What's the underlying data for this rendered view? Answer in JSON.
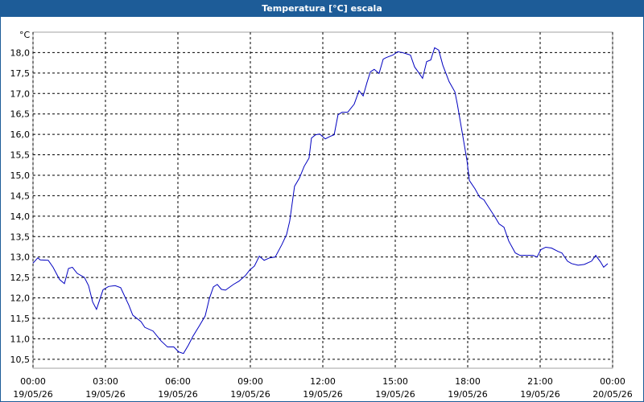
{
  "chart_data": {
    "type": "line",
    "title": "Temperatura [°C] escala",
    "y_unit": "°C",
    "x": [
      0,
      0.2,
      0.3,
      0.63,
      0.83,
      1.1,
      1.3,
      1.47,
      1.63,
      1.83,
      2.13,
      2.3,
      2.47,
      2.63,
      2.9,
      3.13,
      3.4,
      3.63,
      3.97,
      4.13,
      4.47,
      4.63,
      4.97,
      5.3,
      5.57,
      5.83,
      6.03,
      6.23,
      6.43,
      6.63,
      6.9,
      7.13,
      7.3,
      7.47,
      7.63,
      7.8,
      7.97,
      8.3,
      8.53,
      8.8,
      8.97,
      9.17,
      9.37,
      9.57,
      9.8,
      10.03,
      10.3,
      10.5,
      10.63,
      10.83,
      11.03,
      11.23,
      11.43,
      11.53,
      11.7,
      11.87,
      12.1,
      12.3,
      12.47,
      12.63,
      12.8,
      13.03,
      13.3,
      13.5,
      13.67,
      13.83,
      13.97,
      14.13,
      14.33,
      14.5,
      14.63,
      14.9,
      15.1,
      15.3,
      15.63,
      15.8,
      15.97,
      16.13,
      16.3,
      16.47,
      16.63,
      16.8,
      16.97,
      17.23,
      17.47,
      17.57,
      17.8,
      17.97,
      18.07,
      18.3,
      18.5,
      18.67,
      18.8,
      19.13,
      19.3,
      19.5,
      19.7,
      19.97,
      20.17,
      20.47,
      20.7,
      20.87,
      21.03,
      21.23,
      21.47,
      21.73,
      21.9,
      22.13,
      22.3,
      22.57,
      22.83,
      23.13,
      23.3,
      23.5,
      23.63,
      23.8
    ],
    "series": [
      {
        "name": "Temperatura",
        "color": "#0000c0",
        "values": [
          12.85,
          12.98,
          12.93,
          12.92,
          12.75,
          12.45,
          12.35,
          12.72,
          12.75,
          12.6,
          12.5,
          12.3,
          11.9,
          11.72,
          12.2,
          12.28,
          12.3,
          12.25,
          11.82,
          11.58,
          11.42,
          11.28,
          11.19,
          10.95,
          10.8,
          10.8,
          10.68,
          10.64,
          10.84,
          11.07,
          11.33,
          11.56,
          11.98,
          12.27,
          12.33,
          12.21,
          12.19,
          12.33,
          12.41,
          12.55,
          12.68,
          12.78,
          13.02,
          12.92,
          12.98,
          13.0,
          13.3,
          13.55,
          13.88,
          14.73,
          14.93,
          15.22,
          15.42,
          15.91,
          15.99,
          16.01,
          15.89,
          15.95,
          15.99,
          16.48,
          16.54,
          16.54,
          16.74,
          17.07,
          16.94,
          17.27,
          17.53,
          17.59,
          17.49,
          17.84,
          17.88,
          17.94,
          18.02,
          18.0,
          17.94,
          17.65,
          17.51,
          17.37,
          17.78,
          17.82,
          18.12,
          18.06,
          17.69,
          17.29,
          17.04,
          16.74,
          15.95,
          15.36,
          14.87,
          14.67,
          14.46,
          14.4,
          14.28,
          13.98,
          13.81,
          13.73,
          13.39,
          13.1,
          13.04,
          13.04,
          13.04,
          13.0,
          13.18,
          13.24,
          13.22,
          13.14,
          13.1,
          12.9,
          12.84,
          12.8,
          12.82,
          12.9,
          13.04,
          12.88,
          12.75,
          12.84
        ]
      }
    ],
    "xlim": [
      0,
      24
    ],
    "xticks": [
      {
        "value": 0,
        "label": "00:00",
        "date": "19/05/26"
      },
      {
        "value": 3,
        "label": "03:00",
        "date": "19/05/26"
      },
      {
        "value": 6,
        "label": "06:00",
        "date": "19/05/26"
      },
      {
        "value": 9,
        "label": "09:00",
        "date": "19/05/26"
      },
      {
        "value": 12,
        "label": "12:00",
        "date": "19/05/26"
      },
      {
        "value": 15,
        "label": "15:00",
        "date": "19/05/26"
      },
      {
        "value": 18,
        "label": "18:00",
        "date": "19/05/26"
      },
      {
        "value": 21,
        "label": "21:00",
        "date": "19/05/26"
      },
      {
        "value": 24,
        "label": "00:00",
        "date": "20/05/26"
      }
    ],
    "ylim": [
      10.28,
      18.5
    ],
    "yticks": [
      {
        "value": 10.5,
        "label": "10,5"
      },
      {
        "value": 11,
        "label": "11,0"
      },
      {
        "value": 11.5,
        "label": "11,5"
      },
      {
        "value": 12,
        "label": "12,0"
      },
      {
        "value": 12.5,
        "label": "12,5"
      },
      {
        "value": 13,
        "label": "13,0"
      },
      {
        "value": 13.5,
        "label": "13,5"
      },
      {
        "value": 14,
        "label": "14,0"
      },
      {
        "value": 14.5,
        "label": "14,5"
      },
      {
        "value": 15,
        "label": "15,0"
      },
      {
        "value": 15.5,
        "label": "15,5"
      },
      {
        "value": 16,
        "label": "16,0"
      },
      {
        "value": 16.5,
        "label": "16,5"
      },
      {
        "value": 17,
        "label": "17,0"
      },
      {
        "value": 17.5,
        "label": "17,5"
      },
      {
        "value": 18,
        "label": "18,0"
      }
    ],
    "grid": true
  }
}
